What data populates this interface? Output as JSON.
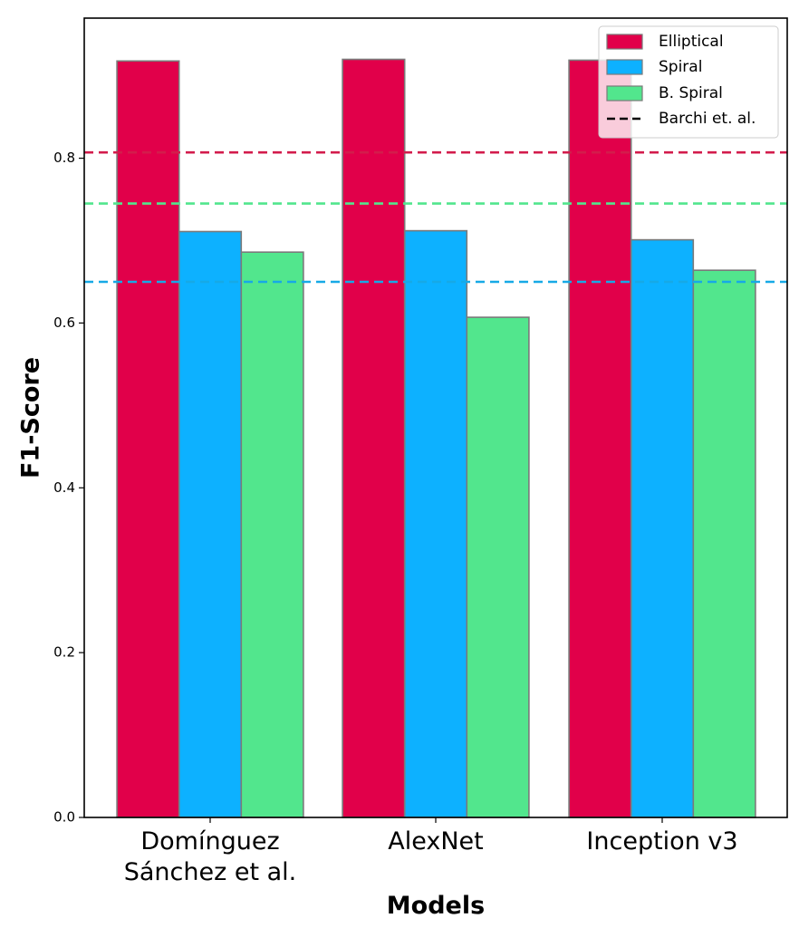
{
  "chart_data": {
    "type": "bar",
    "categories": [
      [
        "Domínguez",
        "Sánchez et al."
      ],
      [
        "AlexNet"
      ],
      [
        "Inception v3"
      ]
    ],
    "series": [
      {
        "name": "Elliptical",
        "color": "#e1004a",
        "values": [
          0.918,
          0.92,
          0.919
        ]
      },
      {
        "name": "Spiral",
        "color": "#0db1ff",
        "values": [
          0.711,
          0.712,
          0.701
        ]
      },
      {
        "name": "B. Spiral",
        "color": "#52e68d",
        "values": [
          0.686,
          0.607,
          0.664
        ]
      }
    ],
    "reference_lines": {
      "name": "Barchi et. al.",
      "lines": [
        {
          "series": "Elliptical",
          "value": 0.807,
          "color": "#d31c4c"
        },
        {
          "series": "B. Spiral",
          "value": 0.745,
          "color": "#52e68d"
        },
        {
          "series": "Spiral",
          "value": 0.65,
          "color": "#17a9e6"
        }
      ]
    },
    "xlabel": "Models",
    "ylabel": "F1-Score",
    "ylim": [
      0,
      0.97
    ],
    "yticks": [
      "0.0",
      "0.2",
      "0.4",
      "0.6",
      "0.8"
    ],
    "grid": false,
    "legend_position": "top-right"
  }
}
